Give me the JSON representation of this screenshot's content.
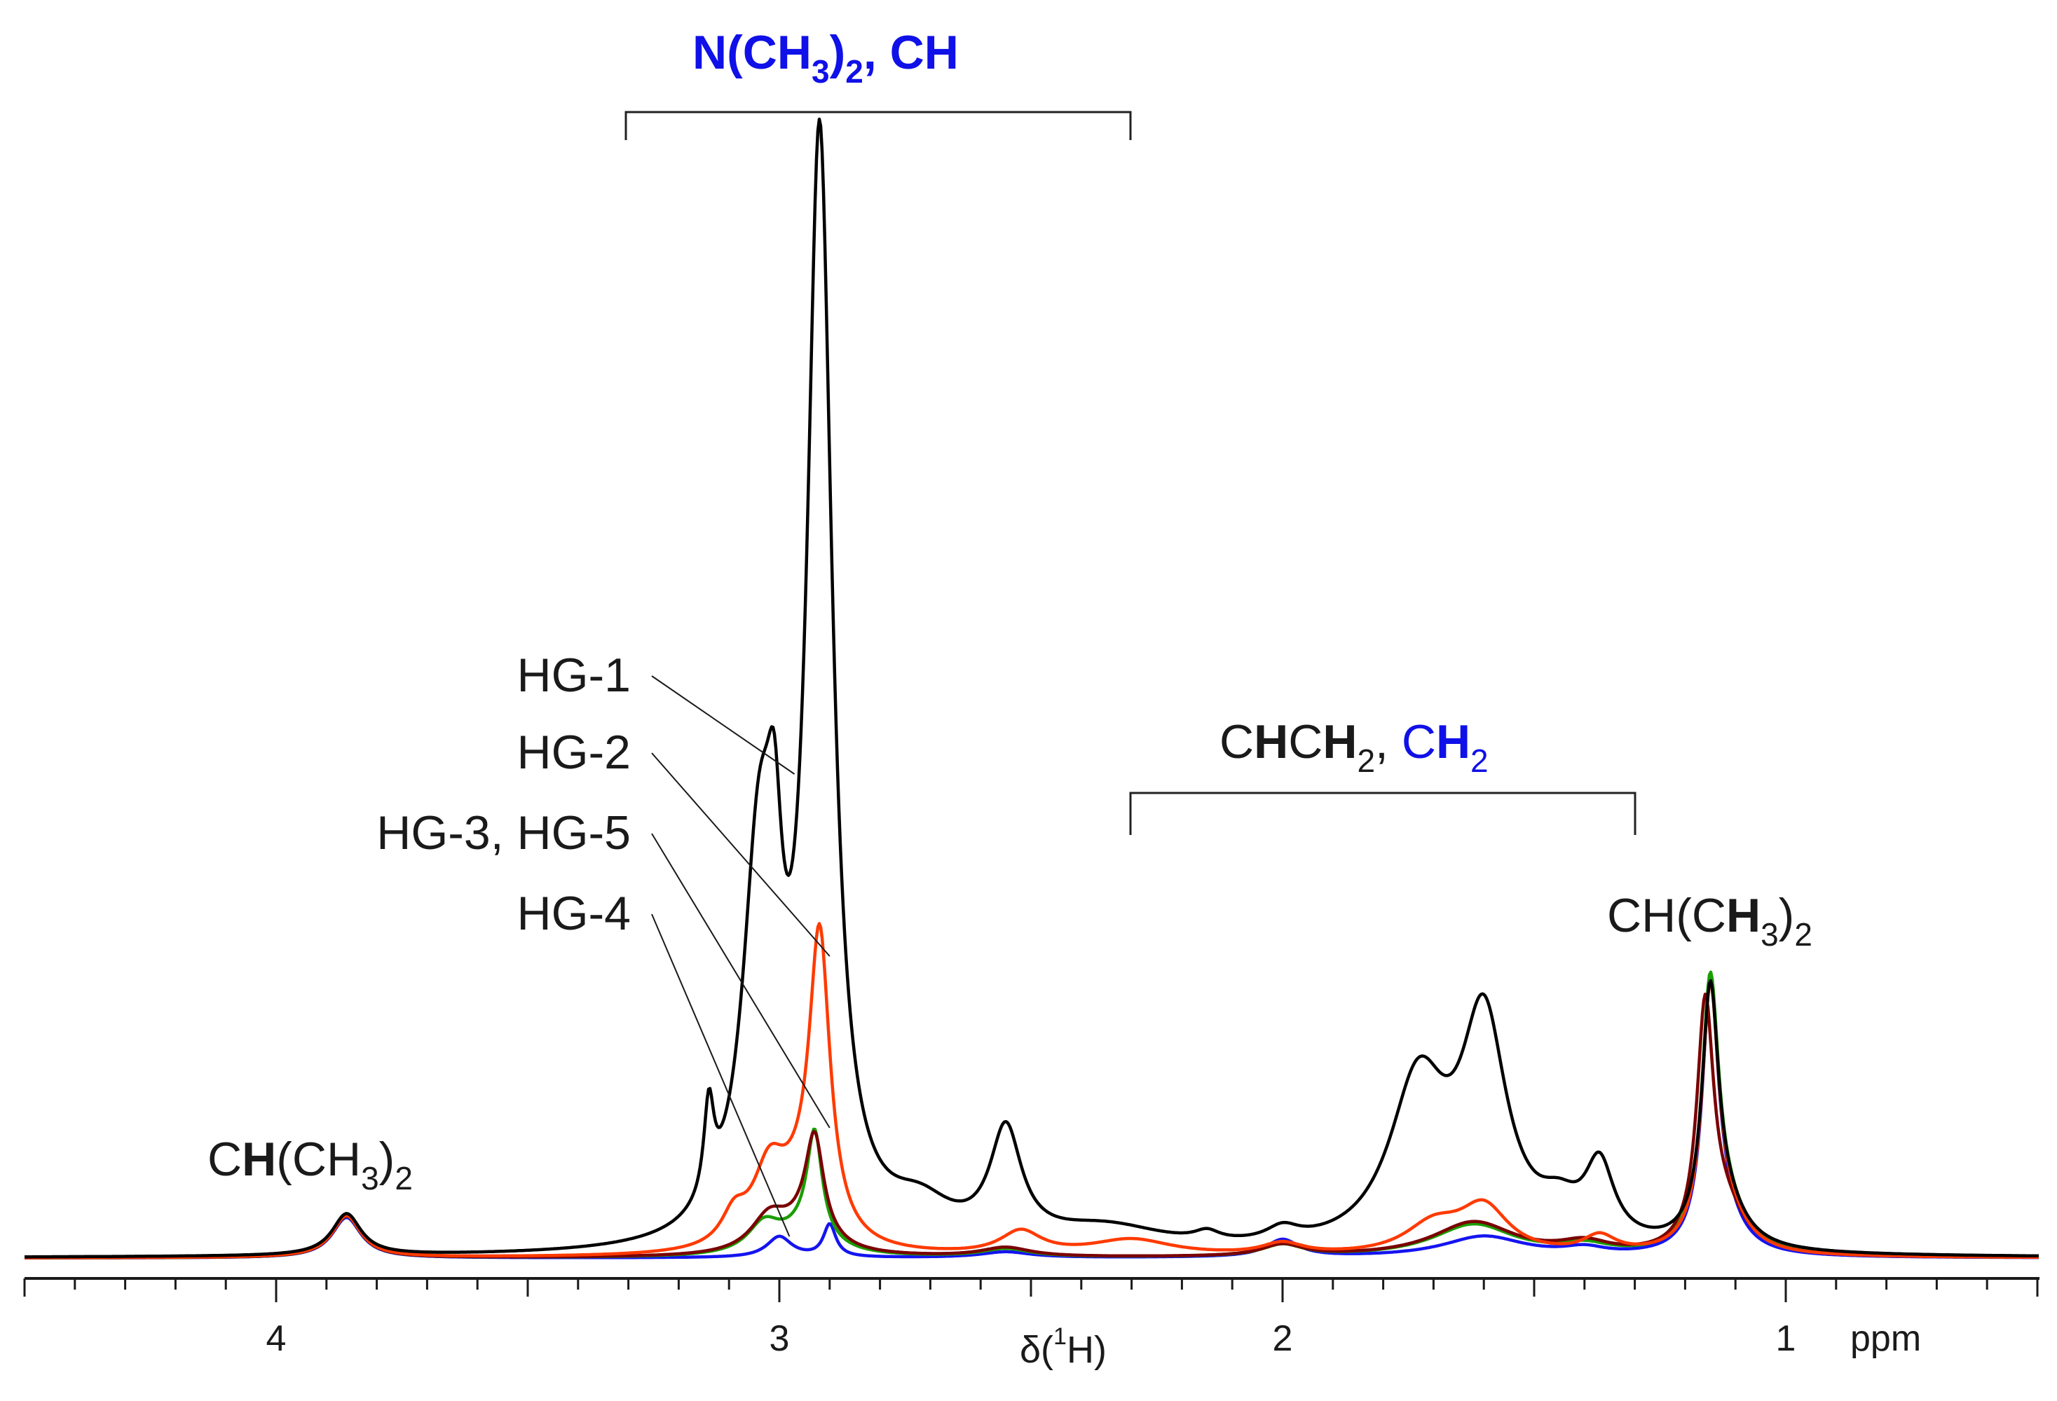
{
  "chart_data": {
    "type": "line",
    "title": "",
    "xlabel": "δ(1H)",
    "xlabel_parts": {
      "symbol": "δ(",
      "sup": "1",
      "nucleus": "H)"
    },
    "x_unit": "ppm",
    "x_reversed": true,
    "xlim": [
      4.5,
      0.5
    ],
    "ylim": [
      0,
      1.0
    ],
    "x_tick_labels": [
      "4",
      "3",
      "2",
      "1"
    ],
    "grid": false,
    "series": [
      {
        "name": "HG-1",
        "color": "#000000",
        "peaks": [
          [
            3.86,
            0.036,
            0.035
          ],
          [
            3.14,
            0.08,
            0.012
          ],
          [
            3.04,
            0.32,
            0.04
          ],
          [
            3.01,
            0.15,
            0.018
          ],
          [
            2.92,
            0.94,
            0.03
          ],
          [
            2.72,
            0.03,
            0.08
          ],
          [
            2.55,
            0.095,
            0.038
          ],
          [
            2.35,
            0.02,
            0.15
          ],
          [
            2.15,
            0.008,
            0.03
          ],
          [
            2.0,
            0.012,
            0.04
          ],
          [
            1.73,
            0.14,
            0.07
          ],
          [
            1.6,
            0.19,
            0.055
          ],
          [
            1.45,
            0.025,
            0.05
          ],
          [
            1.37,
            0.065,
            0.035
          ],
          [
            1.15,
            0.21,
            0.02
          ],
          [
            1.12,
            0.03,
            0.05
          ]
        ]
      },
      {
        "name": "HG-2",
        "color": "#ff3a00",
        "peaks": [
          [
            3.86,
            0.036,
            0.035
          ],
          [
            3.09,
            0.025,
            0.03
          ],
          [
            3.02,
            0.06,
            0.04
          ],
          [
            2.92,
            0.255,
            0.025
          ],
          [
            2.96,
            0.035,
            0.06
          ],
          [
            2.52,
            0.02,
            0.05
          ],
          [
            2.3,
            0.014,
            0.1
          ],
          [
            2.0,
            0.01,
            0.05
          ],
          [
            1.7,
            0.025,
            0.07
          ],
          [
            1.6,
            0.04,
            0.06
          ],
          [
            1.37,
            0.015,
            0.04
          ],
          [
            1.15,
            0.215,
            0.02
          ],
          [
            1.12,
            0.03,
            0.05
          ]
        ]
      },
      {
        "name": "HG-3, HG-5",
        "color": "#1a9e00",
        "peaks": [
          [
            3.86,
            0.036,
            0.035
          ],
          [
            3.03,
            0.025,
            0.04
          ],
          [
            2.93,
            0.09,
            0.018
          ],
          [
            2.95,
            0.02,
            0.06
          ],
          [
            2.55,
            0.007,
            0.06
          ],
          [
            2.0,
            0.01,
            0.05
          ],
          [
            1.62,
            0.028,
            0.1
          ],
          [
            1.4,
            0.008,
            0.06
          ],
          [
            1.15,
            0.22,
            0.02
          ],
          [
            1.12,
            0.035,
            0.05
          ]
        ]
      },
      {
        "name": "HG-4",
        "color": "#1414f0",
        "peaks": [
          [
            3.86,
            0.035,
            0.035
          ],
          [
            3.0,
            0.018,
            0.03
          ],
          [
            2.9,
            0.028,
            0.015
          ],
          [
            2.55,
            0.005,
            0.06
          ],
          [
            2.0,
            0.015,
            0.04
          ],
          [
            1.6,
            0.018,
            0.1
          ],
          [
            1.4,
            0.006,
            0.05
          ],
          [
            1.15,
            0.22,
            0.019
          ],
          [
            1.125,
            0.03,
            0.045
          ]
        ]
      },
      {
        "name": "HG-3, HG-5 (dark red)",
        "color": "#7a0000",
        "peaks": [
          [
            3.86,
            0.036,
            0.035
          ],
          [
            3.02,
            0.03,
            0.045
          ],
          [
            2.93,
            0.085,
            0.022
          ],
          [
            2.95,
            0.02,
            0.06
          ],
          [
            2.55,
            0.008,
            0.06
          ],
          [
            2.0,
            0.01,
            0.05
          ],
          [
            1.62,
            0.03,
            0.1
          ],
          [
            1.4,
            0.01,
            0.06
          ],
          [
            1.16,
            0.205,
            0.02
          ],
          [
            1.12,
            0.035,
            0.05
          ]
        ]
      }
    ],
    "annotations": {
      "top_bracket": {
        "range_ppm": [
          3.3,
          2.3
        ],
        "label_pre": "N(CH",
        "label_sub1": "3",
        "label_mid": ")",
        "label_sub2": "2",
        "label_post": ", CH"
      },
      "mid_bracket": {
        "range_ppm": [
          2.3,
          1.3
        ],
        "label_a": "C",
        "label_b": "H",
        "label_c": "C",
        "label_d": "H",
        "label_sub": "2",
        "label_sep": ", ",
        "label_e": "C",
        "label_f": "H",
        "label_sub2": "2"
      },
      "left_label": {
        "ppm": 3.86,
        "text_c": "C",
        "text_h": "H",
        "text_rest": "(CH",
        "sub1": "3",
        "close": ")",
        "sub2": "2"
      },
      "right_label": {
        "ppm": 1.15,
        "text_pre": "CH(C",
        "text_h": "H",
        "sub1": "3",
        "close": ")",
        "sub2": "2"
      },
      "legend_leaders": [
        {
          "text": "HG-1",
          "target_ppm": 2.97
        },
        {
          "text": "HG-2",
          "target_ppm": 2.9
        },
        {
          "text": "HG-3, HG-5",
          "target_ppm": 2.9
        },
        {
          "text": "HG-4",
          "target_ppm": 2.98
        }
      ]
    }
  }
}
